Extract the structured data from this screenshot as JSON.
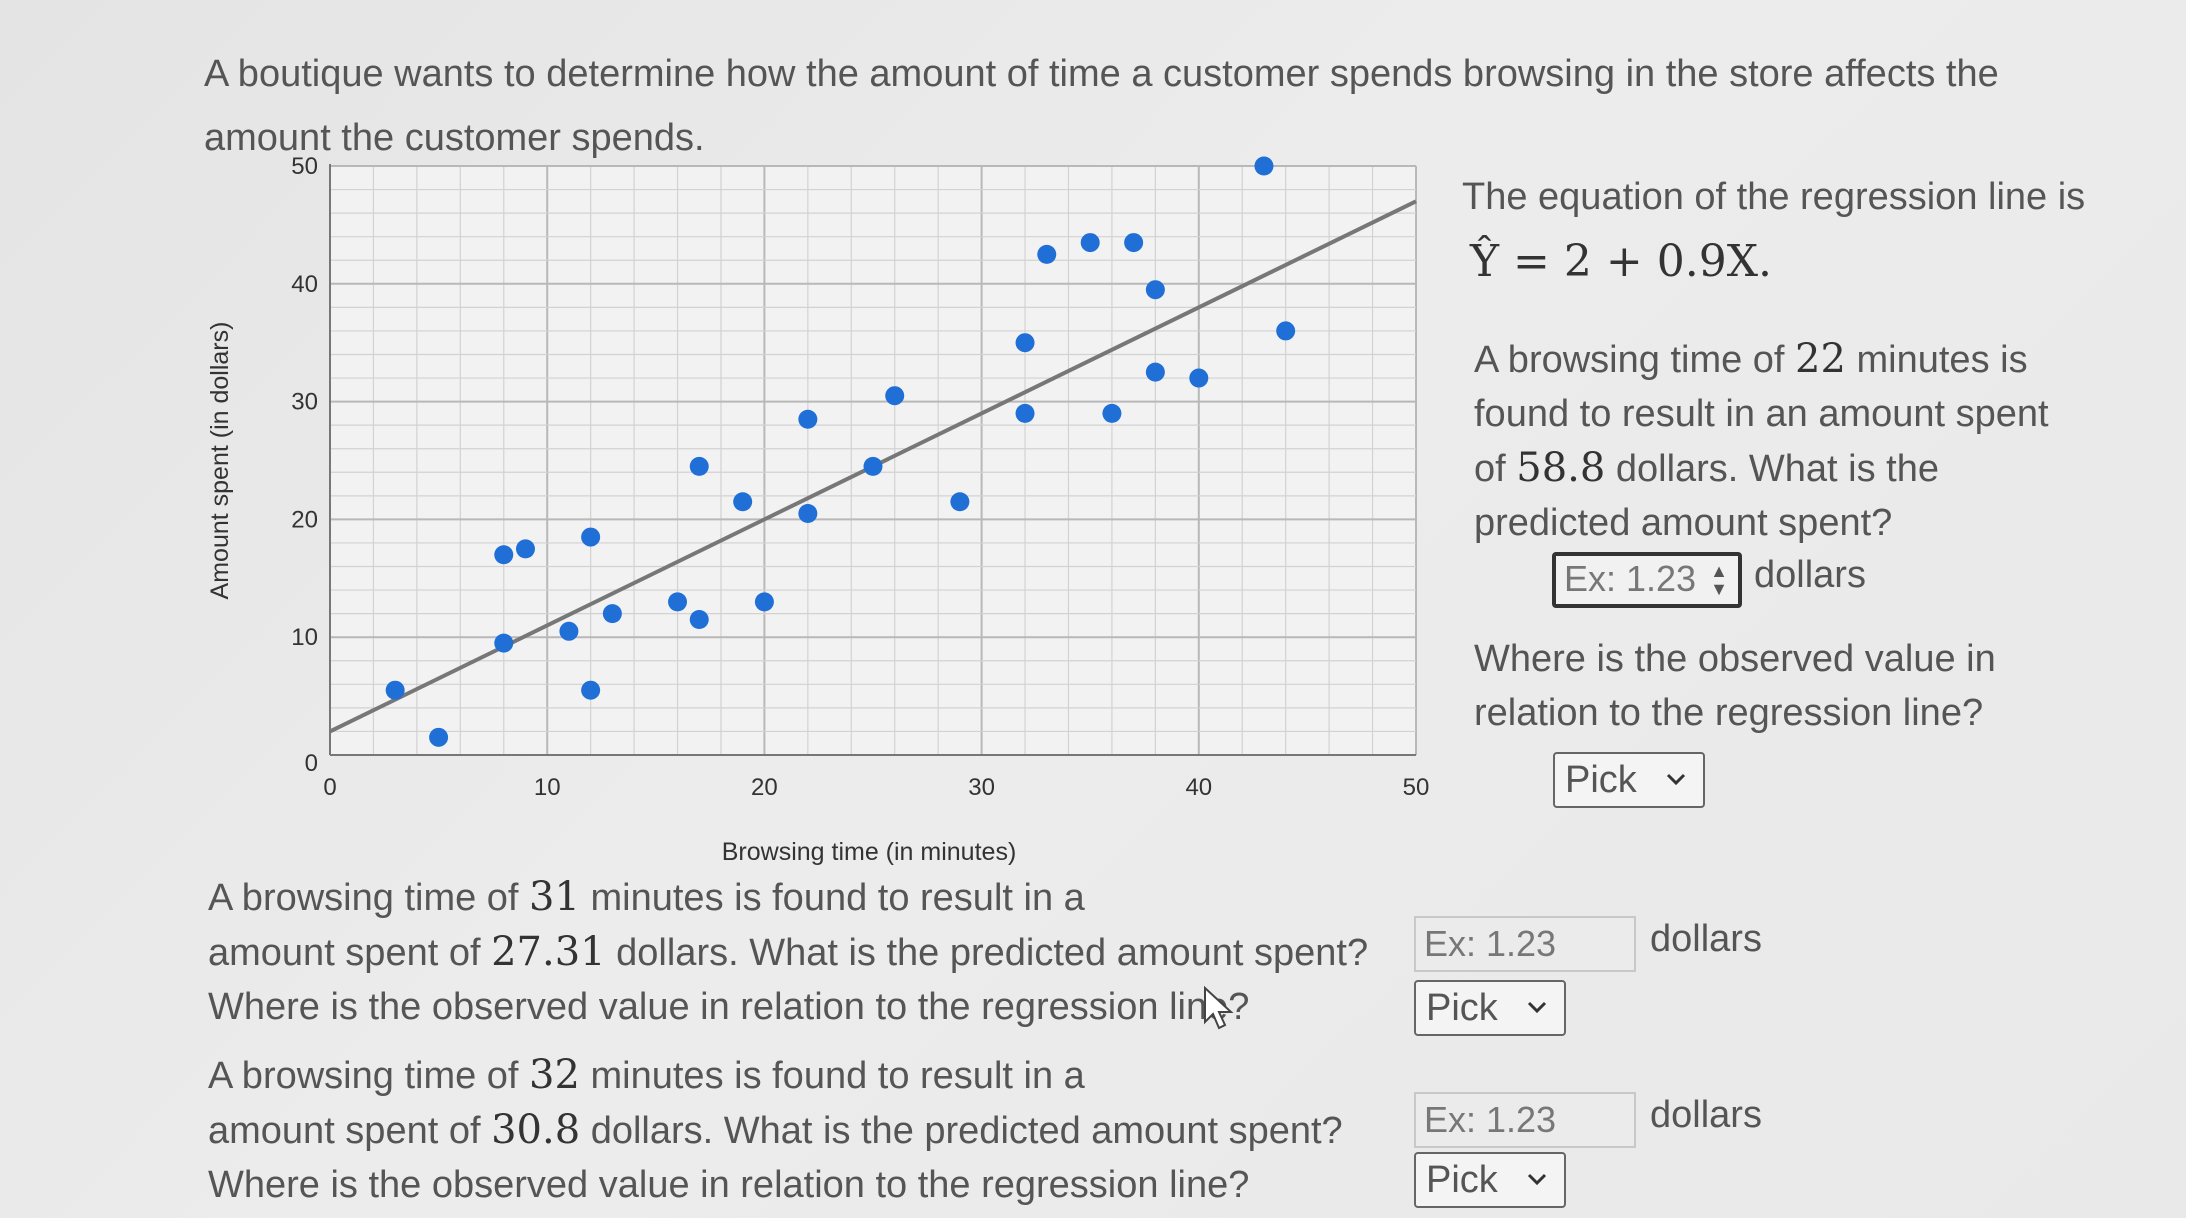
{
  "intro": {
    "line1": "A boutique wants to determine how the amount of time a customer spends browsing in the store affects the",
    "line2": "amount the customer spends."
  },
  "equation": {
    "intro": "The equation of the regression line is",
    "yhat": "Ŷ",
    "rhs": " = 2 + 0.9X",
    "end": "."
  },
  "q1": {
    "t1": "A browsing time of ",
    "time": "22",
    "t2": " minutes is",
    "t3": "found to result in an amount spent",
    "t4": "of ",
    "amount": "58.8",
    "t5": " dollars. What is the",
    "t6": "predicted amount spent?",
    "placeholder": "Ex: 1.23",
    "unit": "dollars",
    "where1": "Where is the observed value in",
    "where2": "relation to the regression line?",
    "select": "Pick"
  },
  "q2": {
    "t1": "A browsing time of ",
    "time": "31",
    "t2": " minutes is found to result in a",
    "t3": "amount spent of ",
    "amount": "27.31",
    "t4": " dollars. What is the predicted amount spent?",
    "where": "Where is the observed value in relation to the regression line?",
    "placeholder": "Ex: 1.23",
    "unit": "dollars",
    "select": "Pick"
  },
  "q3": {
    "t1": "A browsing time of ",
    "time": "32",
    "t2": " minutes is found to result in a",
    "t3": "amount spent of ",
    "amount": "30.8",
    "t4": " dollars. What is the predicted amount spent?",
    "where": "Where is the observed value in relation to the regression line?",
    "placeholder": "Ex: 1.23",
    "unit": "dollars",
    "select": "Pick"
  },
  "chart_data": {
    "type": "scatter",
    "xlabel": "Browsing time (in minutes)",
    "ylabel": "Amount spent (in dollars)",
    "xlim": [
      0,
      50
    ],
    "ylim": [
      0,
      50
    ],
    "xticks": [
      0,
      10,
      20,
      30,
      40,
      50
    ],
    "yticks": [
      0,
      10,
      20,
      30,
      40,
      50
    ],
    "grid": true,
    "point_color": "#1f6fd6",
    "line_color": "#777777",
    "regression_line": {
      "intercept": 2,
      "slope": 0.9,
      "x_range": [
        0,
        50
      ]
    },
    "points": [
      {
        "x": 3,
        "y": 5.5
      },
      {
        "x": 5,
        "y": 1.5
      },
      {
        "x": 8,
        "y": 17
      },
      {
        "x": 9,
        "y": 17.5
      },
      {
        "x": 8,
        "y": 9.5
      },
      {
        "x": 11,
        "y": 10.5
      },
      {
        "x": 12,
        "y": 18.5
      },
      {
        "x": 12,
        "y": 5.5
      },
      {
        "x": 13,
        "y": 12
      },
      {
        "x": 16,
        "y": 13
      },
      {
        "x": 17,
        "y": 11.5
      },
      {
        "x": 17,
        "y": 24.5
      },
      {
        "x": 19,
        "y": 21.5
      },
      {
        "x": 20,
        "y": 13
      },
      {
        "x": 22,
        "y": 28.5
      },
      {
        "x": 22,
        "y": 20.5
      },
      {
        "x": 25,
        "y": 24.5
      },
      {
        "x": 26,
        "y": 30.5
      },
      {
        "x": 29,
        "y": 21.5
      },
      {
        "x": 32,
        "y": 35
      },
      {
        "x": 32,
        "y": 29
      },
      {
        "x": 33,
        "y": 42.5
      },
      {
        "x": 35,
        "y": 43.5
      },
      {
        "x": 36,
        "y": 29
      },
      {
        "x": 37,
        "y": 43.5
      },
      {
        "x": 38,
        "y": 39.5
      },
      {
        "x": 38,
        "y": 32.5
      },
      {
        "x": 40,
        "y": 32
      },
      {
        "x": 43,
        "y": 50
      },
      {
        "x": 44,
        "y": 36
      }
    ]
  }
}
